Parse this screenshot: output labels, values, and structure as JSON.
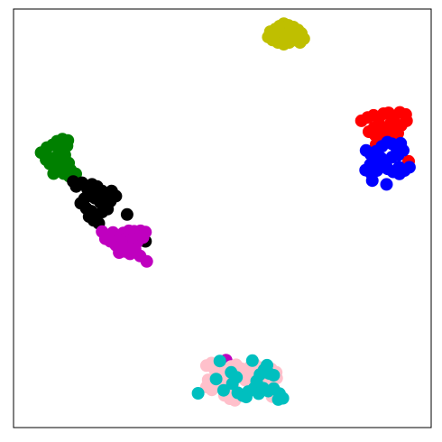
{
  "chart_data": {
    "type": "scatter",
    "title": "",
    "xlabel": "",
    "ylabel": "",
    "xlim": [
      0,
      100
    ],
    "ylim": [
      0,
      100
    ],
    "axes_ticks": "none",
    "grid": false,
    "legend": "none",
    "series": [
      {
        "color": "#bfbf00",
        "points": [
          [
            61.5,
            94.6
          ],
          [
            62.7,
            95.2
          ],
          [
            63.7,
            95.9
          ],
          [
            64.7,
            96.5
          ],
          [
            65.8,
            96.1
          ],
          [
            67.0,
            95.7
          ],
          [
            68.1,
            95.0
          ],
          [
            68.9,
            94.2
          ],
          [
            69.5,
            92.9
          ],
          [
            68.6,
            92.0
          ],
          [
            67.3,
            92.6
          ],
          [
            66.0,
            92.0
          ],
          [
            64.7,
            91.6
          ],
          [
            63.3,
            92.0
          ],
          [
            62.0,
            92.6
          ],
          [
            61.0,
            93.3
          ],
          [
            62.4,
            93.9
          ],
          [
            63.9,
            94.0
          ],
          [
            65.4,
            94.4
          ],
          [
            66.7,
            93.9
          ],
          [
            67.8,
            93.6
          ],
          [
            65.0,
            92.9
          ],
          [
            63.5,
            95.4
          ],
          [
            66.3,
            95.4
          ]
        ]
      },
      {
        "color": "#ff0000",
        "points": [
          [
            83.3,
            73.3
          ],
          [
            84.8,
            74.1
          ],
          [
            86.2,
            74.6
          ],
          [
            87.4,
            73.8
          ],
          [
            88.6,
            75.0
          ],
          [
            89.8,
            75.2
          ],
          [
            91.2,
            74.4
          ],
          [
            92.5,
            75.3
          ],
          [
            93.9,
            74.8
          ],
          [
            94.1,
            73.3
          ],
          [
            92.8,
            72.2
          ],
          [
            91.5,
            71.3
          ],
          [
            90.2,
            72.5
          ],
          [
            89.0,
            71.6
          ],
          [
            87.6,
            72.1
          ],
          [
            86.3,
            71.6
          ],
          [
            85.1,
            70.7
          ],
          [
            86.6,
            69.9
          ],
          [
            88.0,
            70.2
          ],
          [
            89.3,
            69.3
          ],
          [
            90.7,
            69.8
          ],
          [
            92.0,
            70.3
          ],
          [
            87.9,
            68.3
          ],
          [
            86.8,
            67.6
          ],
          [
            94.6,
            63.6
          ],
          [
            92.5,
            66.7
          ]
        ]
      },
      {
        "color": "#0000ff",
        "points": [
          [
            84.4,
            66.2
          ],
          [
            85.5,
            65.3
          ],
          [
            86.8,
            66.0
          ],
          [
            88.2,
            67.2
          ],
          [
            89.5,
            68.2
          ],
          [
            90.6,
            67.8
          ],
          [
            91.8,
            66.6
          ],
          [
            92.7,
            67.9
          ],
          [
            93.3,
            66.2
          ],
          [
            92.1,
            65.1
          ],
          [
            90.6,
            64.6
          ],
          [
            89.2,
            63.5
          ],
          [
            88.0,
            64.4
          ],
          [
            86.7,
            63.9
          ],
          [
            85.4,
            62.8
          ],
          [
            84.3,
            61.5
          ],
          [
            85.7,
            60.6
          ],
          [
            87.0,
            61.4
          ],
          [
            88.3,
            62.4
          ],
          [
            89.6,
            61.8
          ],
          [
            90.9,
            61.1
          ],
          [
            92.3,
            62.2
          ],
          [
            93.6,
            61.4
          ],
          [
            94.8,
            62.2
          ],
          [
            92.4,
            60.6
          ],
          [
            85.9,
            59.0
          ],
          [
            89.3,
            58.1
          ]
        ]
      },
      {
        "color": "#008000",
        "points": [
          [
            6.6,
            65.7
          ],
          [
            8.0,
            65.0
          ],
          [
            9.1,
            63.9
          ],
          [
            10.4,
            64.8
          ],
          [
            11.6,
            66.1
          ],
          [
            12.8,
            67.3
          ],
          [
            13.0,
            68.6
          ],
          [
            11.7,
            68.9
          ],
          [
            10.4,
            68.4
          ],
          [
            9.3,
            67.5
          ],
          [
            8.0,
            66.9
          ],
          [
            7.8,
            64.0
          ],
          [
            8.7,
            63.0
          ],
          [
            10.0,
            62.9
          ],
          [
            11.2,
            61.9
          ],
          [
            12.5,
            62.6
          ],
          [
            13.7,
            61.5
          ],
          [
            14.9,
            60.6
          ],
          [
            13.4,
            60.0
          ],
          [
            12.0,
            60.7
          ],
          [
            10.8,
            64.0
          ],
          [
            12.3,
            65.1
          ],
          [
            13.2,
            63.2
          ],
          [
            9.6,
            60.7
          ]
        ]
      },
      {
        "color": "#000000",
        "points": [
          [
            14.3,
            58.8
          ],
          [
            15.0,
            57.6
          ],
          [
            16.4,
            58.5
          ],
          [
            17.7,
            57.0
          ],
          [
            18.8,
            58.1
          ],
          [
            20.0,
            57.6
          ],
          [
            21.2,
            56.5
          ],
          [
            22.3,
            55.5
          ],
          [
            23.5,
            56.5
          ],
          [
            24.5,
            55.3
          ],
          [
            23.2,
            54.1
          ],
          [
            22.0,
            53.0
          ],
          [
            20.8,
            53.8
          ],
          [
            19.5,
            54.8
          ],
          [
            18.3,
            55.9
          ],
          [
            17.0,
            54.7
          ],
          [
            16.1,
            53.6
          ],
          [
            17.4,
            52.4
          ],
          [
            18.6,
            51.7
          ],
          [
            19.9,
            50.9
          ],
          [
            21.2,
            51.5
          ],
          [
            22.5,
            52.2
          ],
          [
            27.2,
            50.9
          ],
          [
            18.1,
            50.4
          ],
          [
            19.2,
            49.5
          ],
          [
            20.4,
            48.8
          ],
          [
            26.8,
            45.9
          ],
          [
            31.6,
            44.5
          ]
        ]
      },
      {
        "color": "#bf00bf",
        "points": [
          [
            21.2,
            46.8
          ],
          [
            22.5,
            45.9
          ],
          [
            23.8,
            46.6
          ],
          [
            25.0,
            45.4
          ],
          [
            26.3,
            46.5
          ],
          [
            27.6,
            47.0
          ],
          [
            28.9,
            46.9
          ],
          [
            30.4,
            47.0
          ],
          [
            31.6,
            46.7
          ],
          [
            31.0,
            45.4
          ],
          [
            29.6,
            44.3
          ],
          [
            28.3,
            44.9
          ],
          [
            27.1,
            43.8
          ],
          [
            25.8,
            44.5
          ],
          [
            24.5,
            43.6
          ],
          [
            23.2,
            44.5
          ],
          [
            22.0,
            45.1
          ],
          [
            25.3,
            41.8
          ],
          [
            26.6,
            42.1
          ],
          [
            27.9,
            41.5
          ],
          [
            29.1,
            42.6
          ],
          [
            30.3,
            41.0
          ],
          [
            31.9,
            39.7
          ],
          [
            50.9,
            16.1
          ]
        ]
      },
      {
        "color": "#ffc0cb",
        "points": [
          [
            46.2,
            14.8
          ],
          [
            47.4,
            15.4
          ],
          [
            48.2,
            13.8
          ],
          [
            49.5,
            14.6
          ],
          [
            50.8,
            14.0
          ],
          [
            52.1,
            14.6
          ],
          [
            53.3,
            15.0
          ],
          [
            54.5,
            14.1
          ],
          [
            55.4,
            13.5
          ],
          [
            56.6,
            14.5
          ],
          [
            57.8,
            15.1
          ],
          [
            59.1,
            14.3
          ],
          [
            60.4,
            13.4
          ],
          [
            61.7,
            14.0
          ],
          [
            62.9,
            13.2
          ],
          [
            63.0,
            11.8
          ],
          [
            61.8,
            11.0
          ],
          [
            60.5,
            11.7
          ],
          [
            59.3,
            10.7
          ],
          [
            58.0,
            11.7
          ],
          [
            56.8,
            12.2
          ],
          [
            55.5,
            11.3
          ],
          [
            54.2,
            12.0
          ],
          [
            52.9,
            11.6
          ],
          [
            51.6,
            12.4
          ],
          [
            50.3,
            11.3
          ],
          [
            49.0,
            12.1
          ],
          [
            47.8,
            11.0
          ],
          [
            46.6,
            11.4
          ],
          [
            46.2,
            9.7
          ],
          [
            47.5,
            9.0
          ],
          [
            48.7,
            10.3
          ],
          [
            50.0,
            9.5
          ],
          [
            51.3,
            8.7
          ],
          [
            52.6,
            9.6
          ],
          [
            50.5,
            7.7
          ],
          [
            51.8,
            6.9
          ],
          [
            53.0,
            6.5
          ],
          [
            61.9,
            7.4
          ],
          [
            62.8,
            8.6
          ]
        ]
      },
      {
        "color": "#00bfbf",
        "points": [
          [
            44.2,
            8.2
          ],
          [
            48.5,
            11.6
          ],
          [
            49.4,
            15.9
          ],
          [
            52.4,
            10.5
          ],
          [
            53.7,
            8.3
          ],
          [
            54.9,
            7.6
          ],
          [
            56.2,
            8.6
          ],
          [
            57.6,
            9.4
          ],
          [
            57.2,
            16.0
          ],
          [
            58.7,
            8.1
          ],
          [
            59.8,
            9.4
          ],
          [
            61.0,
            8.7
          ],
          [
            62.3,
            9.3
          ],
          [
            63.7,
            8.1
          ],
          [
            64.5,
            7.0
          ],
          [
            63.4,
            6.7
          ],
          [
            62.3,
            12.5
          ],
          [
            61.2,
            12.9
          ],
          [
            60.0,
            13.8
          ],
          [
            59.0,
            12.7
          ],
          [
            52.1,
            13.2
          ],
          [
            50.3,
            8.9
          ],
          [
            53.4,
            12.0
          ],
          [
            58.2,
            11.1
          ],
          [
            55.7,
            7.3
          ],
          [
            60.7,
            14.9
          ]
        ]
      }
    ]
  }
}
